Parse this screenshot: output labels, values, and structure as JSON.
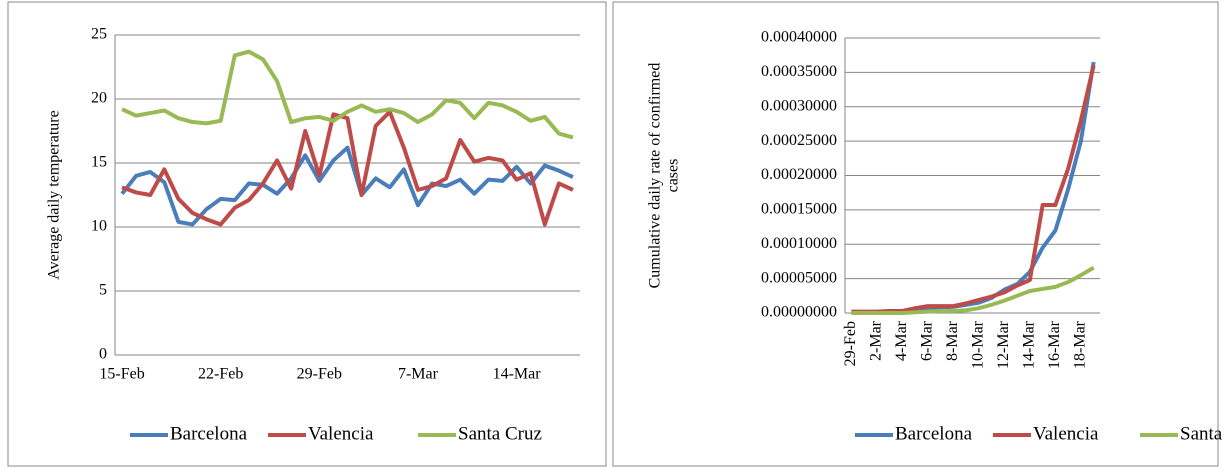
{
  "chart_data": [
    {
      "type": "line",
      "y_label": [
        "Average daily temperature"
      ],
      "categories": [
        "15-Feb",
        null,
        null,
        null,
        null,
        null,
        null,
        "22-Feb",
        null,
        null,
        null,
        null,
        null,
        null,
        "29-Feb",
        null,
        null,
        null,
        null,
        null,
        null,
        "7-Mar",
        null,
        null,
        null,
        null,
        null,
        null,
        "14-Mar",
        null,
        null,
        null,
        null
      ],
      "series": [
        {
          "name": "Barcelona",
          "color": "#4a7ebb",
          "values": [
            12.6,
            14.0,
            14.3,
            13.5,
            10.4,
            10.2,
            11.4,
            12.2,
            12.1,
            13.4,
            13.3,
            12.6,
            13.8,
            15.6,
            13.6,
            15.2,
            16.2,
            12.5,
            13.8,
            13.1,
            14.5,
            11.7,
            13.4,
            13.2,
            13.7,
            12.6,
            13.7,
            13.6,
            14.7,
            13.4,
            14.8,
            14.4,
            13.9
          ]
        },
        {
          "name": "Valencia",
          "color": "#be4b48",
          "values": [
            13.1,
            12.7,
            12.5,
            14.5,
            12.2,
            11.1,
            10.6,
            10.2,
            11.5,
            12.1,
            13.4,
            15.2,
            13.0,
            17.5,
            14.0,
            18.8,
            18.5,
            12.5,
            17.9,
            19.0,
            16.2,
            12.9,
            13.2,
            13.8,
            16.8,
            15.1,
            15.4,
            15.2,
            13.7,
            14.2,
            10.2,
            13.4,
            12.9
          ]
        },
        {
          "name": "Santa Cruz",
          "color": "#98b954",
          "values": [
            19.2,
            18.7,
            18.9,
            19.1,
            18.5,
            18.2,
            18.1,
            18.3,
            23.4,
            23.7,
            23.1,
            21.4,
            18.2,
            18.5,
            18.6,
            18.3,
            19.0,
            19.5,
            19.0,
            19.2,
            18.9,
            18.2,
            18.8,
            19.9,
            19.7,
            18.5,
            19.7,
            19.5,
            19.0,
            18.3,
            18.6,
            17.3,
            17.0
          ]
        }
      ],
      "ylim": [
        0,
        25
      ],
      "yticks": [
        0,
        5,
        10,
        15,
        20,
        25
      ],
      "grid": true,
      "legend": "bottom"
    },
    {
      "type": "line",
      "y_label": [
        "Cumulative daily rate of confirmed",
        "cases"
      ],
      "categories": [
        "29-Feb",
        null,
        "2-Mar",
        null,
        "4-Mar",
        null,
        "6-Mar",
        null,
        "8-Mar",
        null,
        "10-Mar",
        null,
        "12-Mar",
        null,
        "14-Mar",
        null,
        "16-Mar",
        null,
        "18-Mar",
        null
      ],
      "series": [
        {
          "name": "Barcelona",
          "color": "#4a7ebb",
          "values": [
            0,
            0,
            0,
            1e-06,
            1e-06,
            3e-06,
            5e-06,
            8e-06,
            9e-06,
            1.2e-05,
            1.5e-05,
            2.2e-05,
            3.4e-05,
            4.2e-05,
            6e-05,
            9.5e-05,
            0.00012,
            0.00018,
            0.00025,
            0.000365
          ]
        },
        {
          "name": "Valencia",
          "color": "#be4b48",
          "values": [
            2e-06,
            2e-06,
            2e-06,
            3e-06,
            3e-06,
            7e-06,
            1e-05,
            1e-05,
            1e-05,
            1.4e-05,
            1.9e-05,
            2.4e-05,
            3e-05,
            4e-05,
            4.8e-05,
            0.000157,
            0.000157,
            0.00021,
            0.00028,
            0.00036
          ]
        },
        {
          "name": "Santa Cruz",
          "color": "#98b954",
          "values": [
            0,
            0,
            0,
            0,
            0,
            1e-06,
            2e-06,
            3e-06,
            3e-06,
            4e-06,
            7e-06,
            1.2e-05,
            1.8e-05,
            2.5e-05,
            3.2e-05,
            3.5e-05,
            3.8e-05,
            4.5e-05,
            5.5e-05,
            6.6e-05
          ]
        }
      ],
      "ylim": [
        0,
        0.0004
      ],
      "yticks": [
        {
          "value": 0,
          "label": "0.00000000"
        },
        {
          "value": 5e-05,
          "label": "0.00005000"
        },
        {
          "value": 0.0001,
          "label": "0.00010000"
        },
        {
          "value": 0.00015,
          "label": "0.00015000"
        },
        {
          "value": 0.0002,
          "label": "0.00020000"
        },
        {
          "value": 0.00025,
          "label": "0.00025000"
        },
        {
          "value": 0.0003,
          "label": "0.00030000"
        },
        {
          "value": 0.00035,
          "label": "0.00035000"
        },
        {
          "value": 0.0004,
          "label": "0.00040000"
        }
      ],
      "grid": true,
      "legend": "bottom",
      "x_label_rotation": -90
    }
  ]
}
